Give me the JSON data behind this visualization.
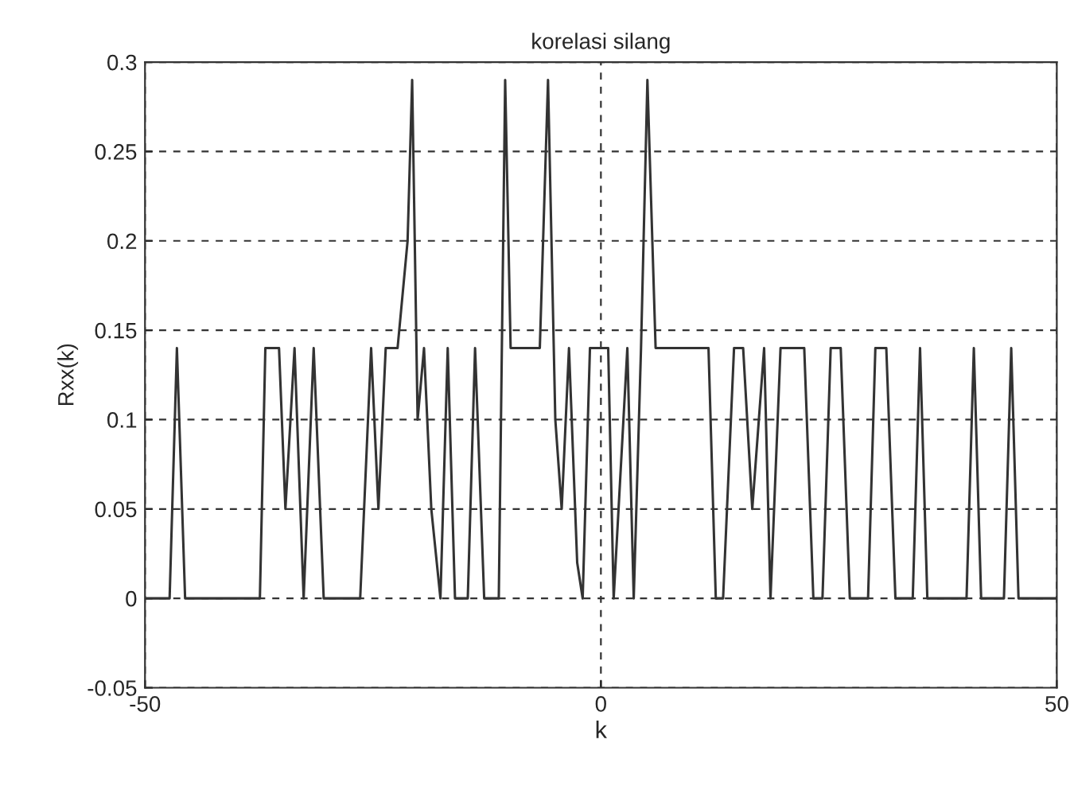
{
  "chart_data": {
    "type": "line",
    "title": "korelasi silang",
    "xlabel": "k",
    "ylabel": "Rxx(k)",
    "xlim": [
      -50,
      50
    ],
    "xticks": [
      -50,
      0,
      50
    ],
    "ylim": [
      -0.05,
      0.3
    ],
    "yticks": [
      -0.05,
      0,
      0.05,
      0.1,
      0.15,
      0.2,
      0.25,
      0.3
    ],
    "grid": true,
    "line_style": "solid",
    "marker": "none",
    "series": [
      {
        "color": "#333333",
        "x": [
          -50,
          -47.3,
          -46.5,
          -45.6,
          -37.4,
          -36.8,
          -35.3,
          -34.6,
          -33.6,
          -32.6,
          -31.5,
          -30.4,
          -26.4,
          -25.2,
          -24.4,
          -23.6,
          -22.3,
          -21.2,
          -20.7,
          -20.1,
          -19.4,
          -18.6,
          -17.6,
          -16.8,
          -16.0,
          -14.6,
          -13.8,
          -12.8,
          -11.2,
          -10.5,
          -9.9,
          -6.7,
          -5.8,
          -5.0,
          -4.3,
          -3.5,
          -2.6,
          -2.0,
          -1.2,
          0.8,
          1.4,
          2.9,
          3.6,
          4.4,
          5.1,
          6.0,
          11.8,
          12.6,
          13.4,
          14.6,
          15.6,
          16.6,
          17.9,
          18.6,
          19.7,
          22.3,
          23.3,
          24.3,
          25.2,
          26.3,
          27.3,
          29.3,
          30.1,
          31.3,
          32.3,
          34.2,
          35.0,
          35.8,
          40.1,
          40.9,
          41.7,
          44.2,
          45.0,
          45.8,
          50
        ],
        "values": [
          0,
          0,
          0.14,
          0,
          0,
          0.14,
          0.14,
          0.05,
          0.14,
          0,
          0.14,
          0,
          0,
          0.14,
          0.05,
          0.14,
          0.14,
          0.2,
          0.29,
          0.1,
          0.14,
          0.05,
          0,
          0.14,
          0,
          0,
          0.14,
          0,
          0,
          0.29,
          0.14,
          0.14,
          0.29,
          0.1,
          0.05,
          0.14,
          0.02,
          0,
          0.14,
          0.14,
          0,
          0.14,
          0,
          0.14,
          0.29,
          0.14,
          0.14,
          0,
          0,
          0.14,
          0.14,
          0.05,
          0.14,
          0,
          0.14,
          0.14,
          0,
          0,
          0.14,
          0.14,
          0,
          0,
          0.14,
          0.14,
          0,
          0,
          0.14,
          0,
          0,
          0.14,
          0,
          0,
          0.14,
          0,
          0
        ]
      }
    ]
  }
}
